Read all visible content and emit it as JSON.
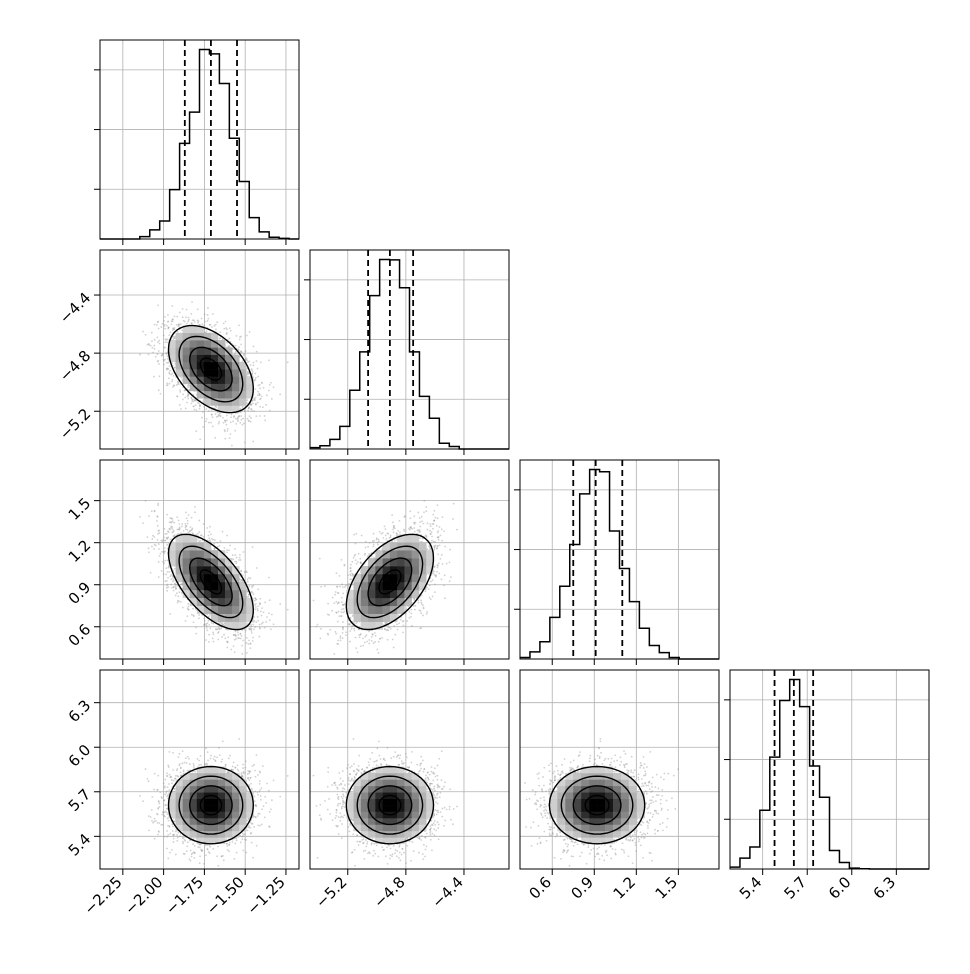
{
  "chart_data": {
    "type": "corner",
    "parameters": [
      {
        "range": [
          -2.39,
          -1.17
        ],
        "ticks": [
          -2.25,
          -2.0,
          -1.75,
          -1.5,
          -1.25
        ],
        "tick_labels": [
          "−2.25",
          "−2.00",
          "−1.75",
          "−1.50",
          "−1.25"
        ],
        "quantiles": [
          -1.87,
          -1.71,
          -1.55
        ],
        "mean": -1.71,
        "sd": 0.13
      },
      {
        "range": [
          -5.46,
          -4.09
        ],
        "ticks": [
          -5.2,
          -4.8,
          -4.4
        ],
        "tick_labels": [
          "−5.2",
          "−4.8",
          "−4.4"
        ],
        "quantiles": [
          -5.06,
          -4.91,
          -4.75
        ],
        "mean": -4.91,
        "sd": 0.15
      },
      {
        "range": [
          0.37,
          1.79
        ],
        "ticks": [
          0.6,
          0.9,
          1.2,
          1.5
        ],
        "tick_labels": [
          "0.6",
          "0.9",
          "1.2",
          "1.5"
        ],
        "quantiles": [
          0.75,
          0.91,
          1.1
        ],
        "mean": 0.92,
        "sd": 0.17
      },
      {
        "range": [
          5.18,
          6.52
        ],
        "ticks": [
          5.4,
          5.7,
          6.0,
          6.3
        ],
        "tick_labels": [
          "5.4",
          "5.7",
          "6.0",
          "6.3"
        ],
        "quantiles": [
          5.48,
          5.61,
          5.74
        ],
        "mean": 5.61,
        "sd": 0.13
      }
    ],
    "correlations": [
      [
        1.0,
        -0.45,
        -0.6,
        0.0
      ],
      [
        -0.45,
        1.0,
        0.5,
        0.0
      ],
      [
        -0.6,
        0.5,
        1.0,
        0.0
      ],
      [
        0.0,
        0.0,
        0.0,
        1.0
      ]
    ],
    "grid": true,
    "quantile_style": "dashed",
    "colors": {
      "line": "#000000",
      "scatter": "#999999",
      "grid": "#b0b0b0",
      "frame": "#000000"
    }
  }
}
